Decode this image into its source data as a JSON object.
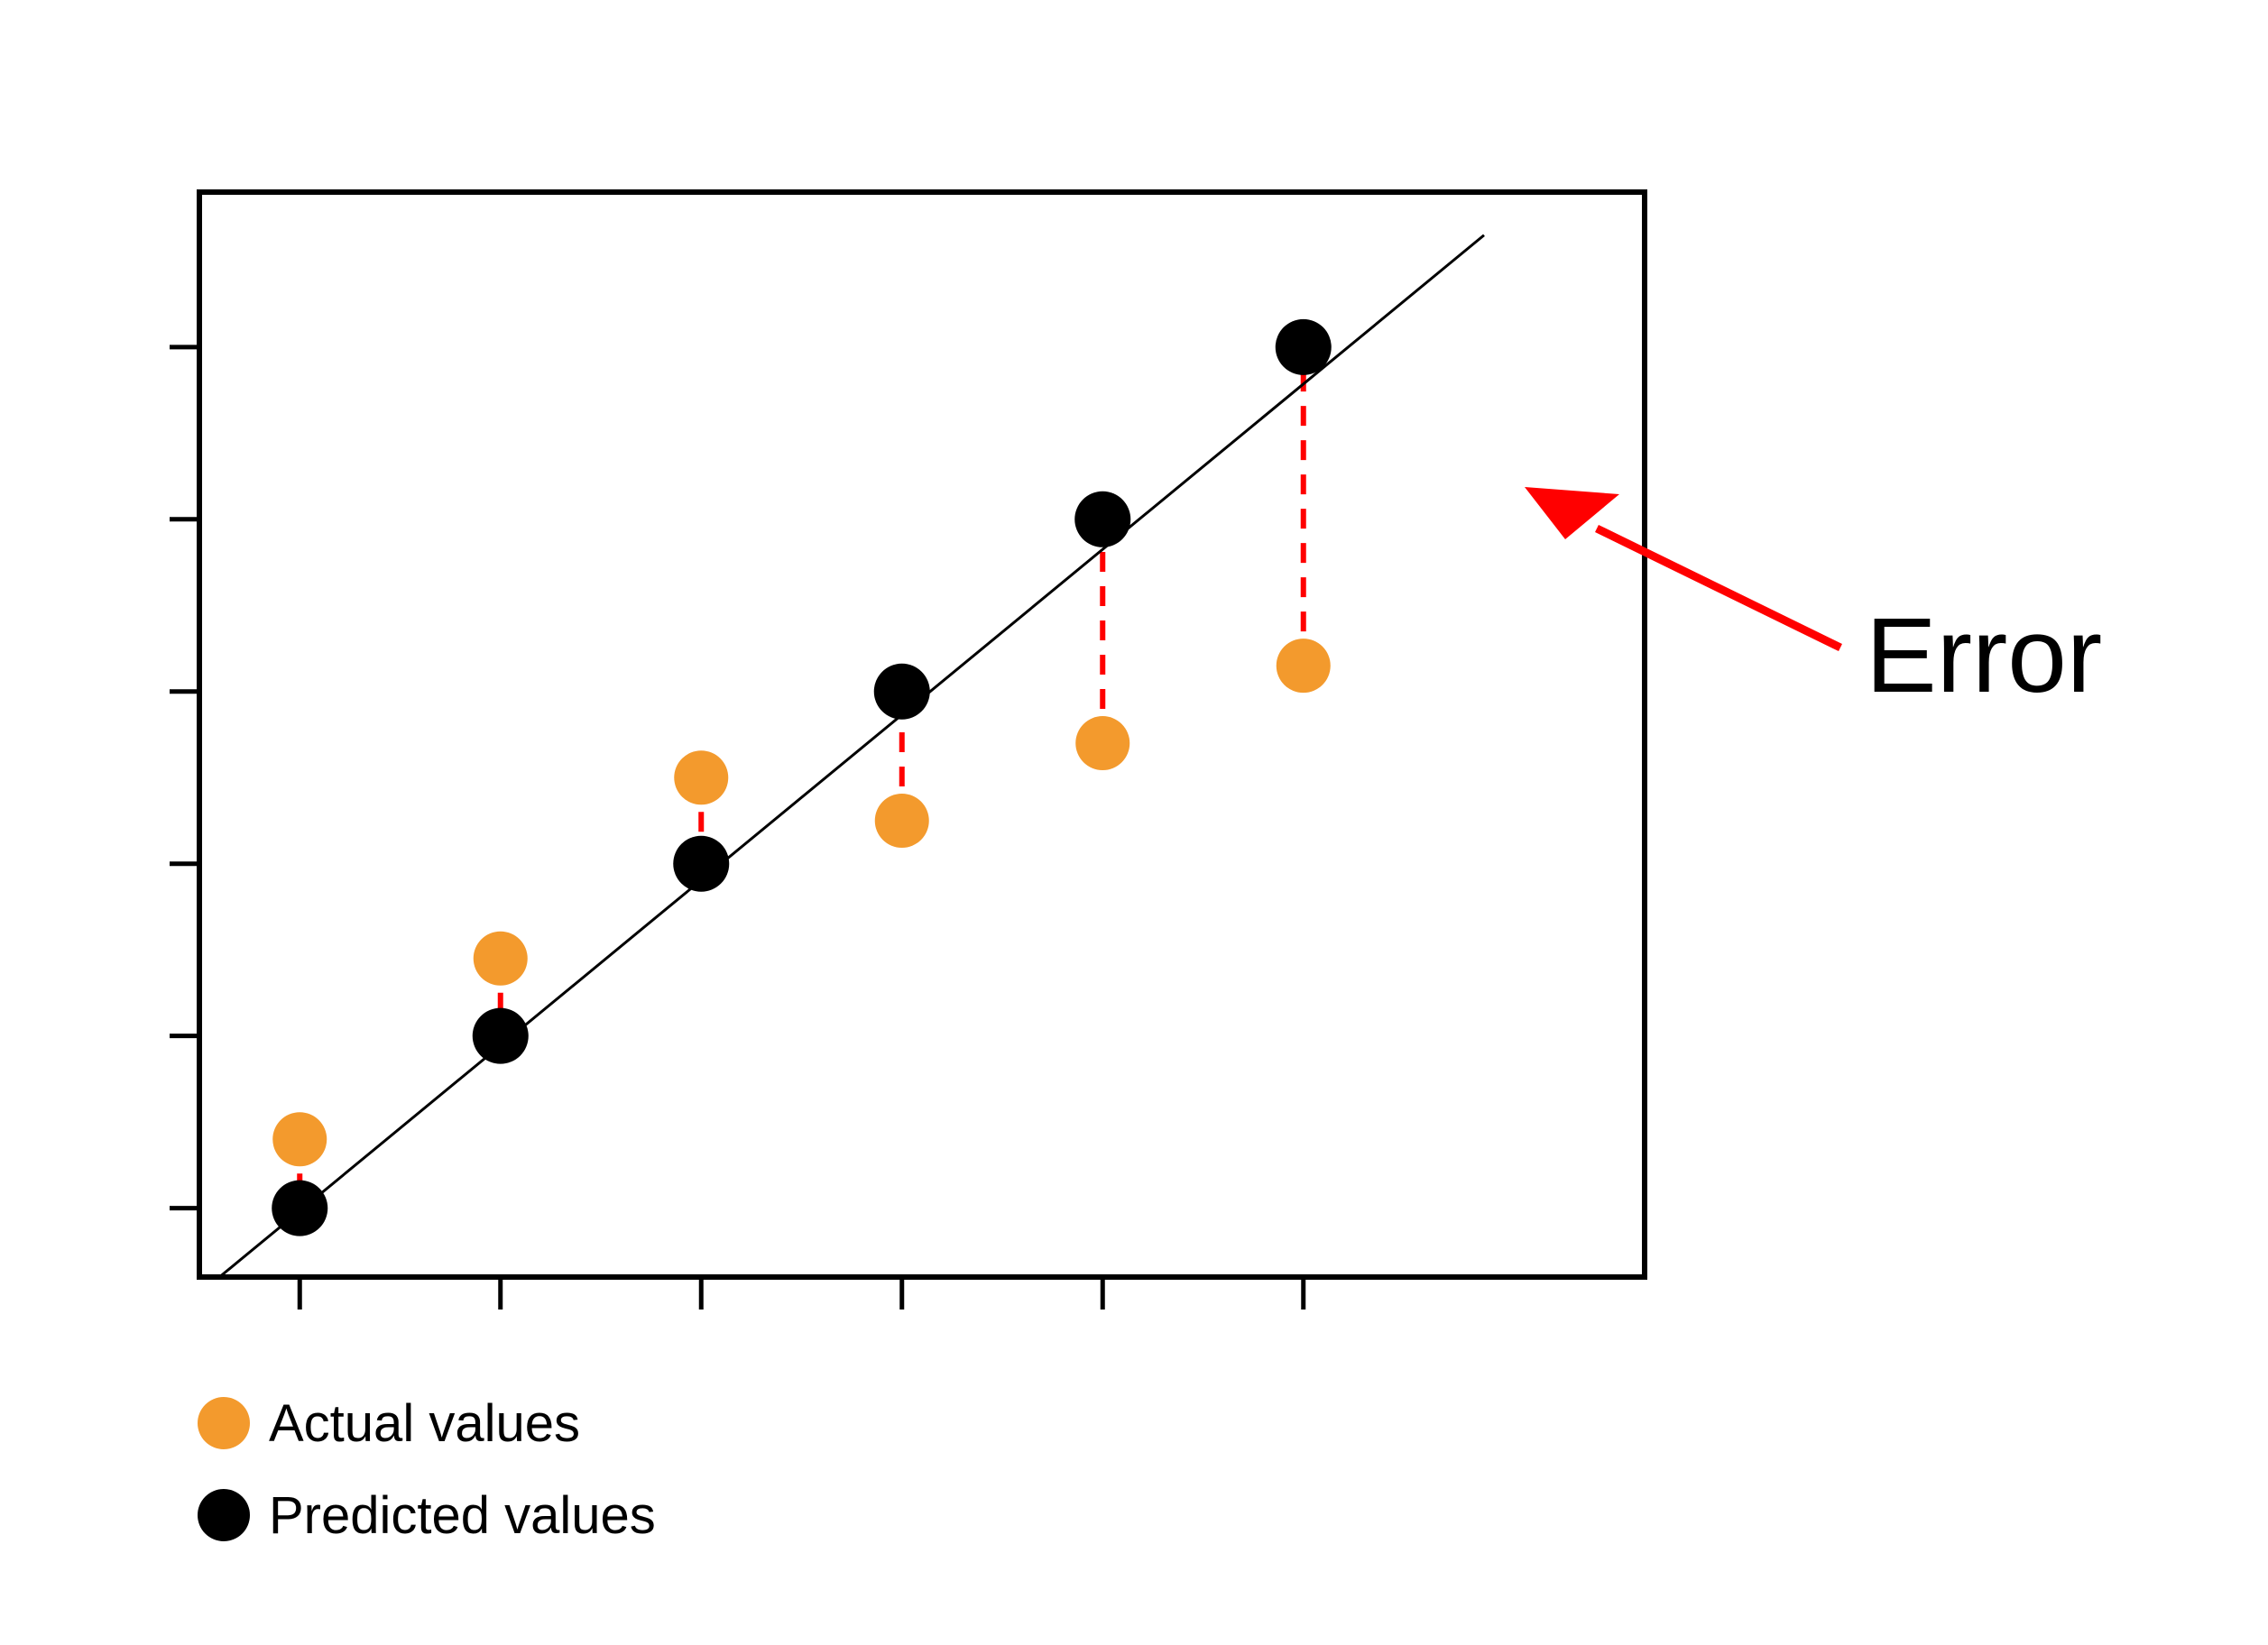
{
  "chart_data": {
    "type": "scatter",
    "title": "",
    "xlabel": "",
    "ylabel": "",
    "x": [
      1,
      2,
      3,
      4,
      5,
      6
    ],
    "xlim": [
      0.5,
      7.7
    ],
    "ylim": [
      0.6,
      6.9
    ],
    "xticks": [
      1,
      2,
      3,
      4,
      5,
      6
    ],
    "yticks": [
      1,
      2,
      3,
      4,
      5,
      6
    ],
    "grid": false,
    "legend_position": "bottom-left",
    "series": [
      {
        "name": "Actual values",
        "role": "actual",
        "color": "#F39A2D",
        "values": [
          1.4,
          2.45,
          3.5,
          3.25,
          3.7,
          4.15
        ]
      },
      {
        "name": "Predicted values",
        "role": "predicted",
        "color": "#000000",
        "values": [
          1.0,
          2.0,
          3.0,
          4.0,
          5.0,
          6.0
        ]
      }
    ],
    "fit_line": {
      "color": "#000000",
      "x": [
        0.6,
        6.9
      ],
      "y": [
        0.6,
        6.65
      ]
    },
    "error_lines": {
      "color": "#FF0000",
      "style": "dashed"
    },
    "annotations": [
      {
        "text": "Error",
        "color": "#FF0000",
        "points_to": {
          "x": 6.1,
          "y": 5.0
        }
      }
    ]
  }
}
